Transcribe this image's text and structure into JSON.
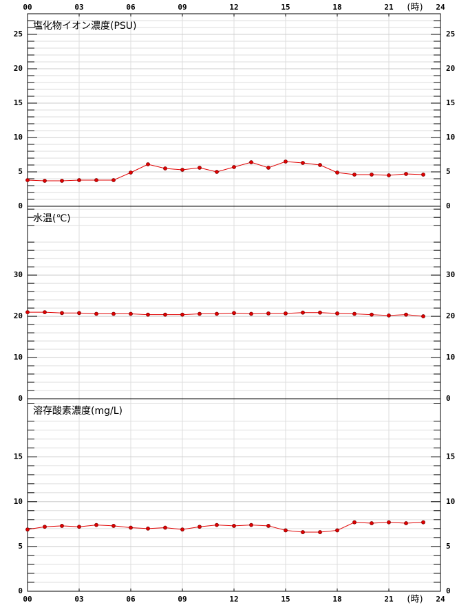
{
  "chart_data": [
    {
      "type": "line",
      "title": "塩化物イオン濃度(PSU)",
      "color": "#e00000",
      "x": [
        0,
        1,
        2,
        3,
        4,
        5,
        6,
        7,
        8,
        9,
        10,
        11,
        12,
        13,
        14,
        15,
        16,
        17,
        18,
        19,
        20,
        21,
        22,
        23
      ],
      "values": [
        3.8,
        3.7,
        3.7,
        3.8,
        3.8,
        3.8,
        4.9,
        6.1,
        5.5,
        5.3,
        5.6,
        5.0,
        5.7,
        6.4,
        5.6,
        6.5,
        6.3,
        6.0,
        4.9,
        4.6,
        4.6,
        4.5,
        4.7,
        4.6
      ],
      "ylim": [
        0,
        28
      ],
      "yticks": [
        0,
        5,
        10,
        15,
        20,
        25
      ],
      "xlim": [
        0,
        24
      ],
      "xticks": [
        {
          "value": 0,
          "label": "00"
        },
        {
          "value": 3,
          "label": "03"
        },
        {
          "value": 6,
          "label": "06"
        },
        {
          "value": 9,
          "label": "09"
        },
        12,
        15,
        18,
        21,
        24
      ],
      "xlabel": "(時)",
      "grid": true
    },
    {
      "type": "line",
      "title": "水温(℃)",
      "color": "#e00000",
      "x": [
        0,
        1,
        2,
        3,
        4,
        5,
        6,
        7,
        8,
        9,
        10,
        11,
        12,
        13,
        14,
        15,
        16,
        17,
        18,
        19,
        20,
        21,
        22,
        23
      ],
      "values": [
        21.0,
        21.0,
        20.8,
        20.8,
        20.6,
        20.6,
        20.6,
        20.4,
        20.4,
        20.4,
        20.6,
        20.6,
        20.8,
        20.6,
        20.7,
        20.7,
        20.9,
        20.9,
        20.7,
        20.6,
        20.4,
        20.2,
        20.4,
        20.0
      ],
      "ylim": [
        0,
        46.7
      ],
      "yticks": [
        0,
        10,
        20,
        30
      ],
      "xlim": [
        0,
        24
      ],
      "grid": true
    },
    {
      "type": "line",
      "title": "溶存酸素濃度(mg/L)",
      "color": "#e00000",
      "x": [
        0,
        1,
        2,
        3,
        4,
        5,
        6,
        7,
        8,
        9,
        10,
        11,
        12,
        13,
        14,
        15,
        16,
        17,
        18,
        19,
        20,
        21,
        22,
        23
      ],
      "values": [
        6.9,
        7.2,
        7.3,
        7.2,
        7.4,
        7.3,
        7.1,
        7.0,
        7.1,
        6.9,
        7.2,
        7.4,
        7.3,
        7.4,
        7.3,
        6.8,
        6.6,
        6.6,
        6.8,
        7.7,
        7.6,
        7.7,
        7.6,
        7.7
      ],
      "ylim": [
        0,
        21.5
      ],
      "yticks": [
        0,
        5,
        10,
        15
      ],
      "xlim": [
        0,
        24
      ],
      "xticks": [
        {
          "value": 0,
          "label": "00"
        },
        {
          "value": 3,
          "label": "03"
        },
        {
          "value": 6,
          "label": "06"
        },
        {
          "value": 9,
          "label": "09"
        },
        12,
        15,
        18,
        21,
        24
      ],
      "xlabel": "(時)",
      "grid": true
    }
  ]
}
